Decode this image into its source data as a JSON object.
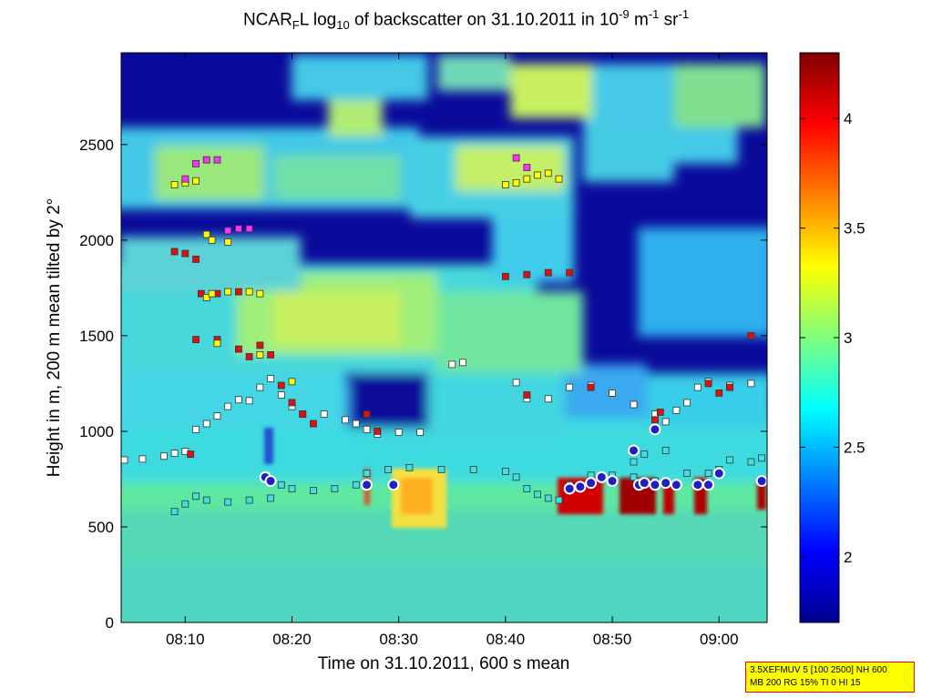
{
  "chart_data": {
    "type": "heatmap",
    "title_parts": {
      "a": "NCAR",
      "a_sub": "F",
      "b": "L log",
      "b_sub": "10",
      "c": " of backscatter on 31.10.2011 in 10",
      "c_sup": "-9",
      "d": " m",
      "d_sup": "-1",
      "e": " sr",
      "e_sup": "-1"
    },
    "xlabel": "Time on 31.10.2011, 600 s mean",
    "ylabel": "Height in m, 200 m mean tilted by 2°",
    "x_ticks": [
      "08:10",
      "08:20",
      "08:30",
      "08:40",
      "08:50",
      "09:00"
    ],
    "x_tick_minutes": [
      10,
      20,
      30,
      40,
      50,
      60
    ],
    "xlim_minutes_after_0800": [
      4,
      64.5
    ],
    "y_ticks": [
      "0",
      "500",
      "1000",
      "1500",
      "2000",
      "2500"
    ],
    "y_tick_values": [
      0,
      500,
      1000,
      1500,
      2000,
      2500
    ],
    "ylim": [
      0,
      2980
    ],
    "colorbar": {
      "ticks": [
        "2",
        "2.5",
        "3",
        "3.5",
        "4"
      ],
      "tick_values": [
        2,
        2.5,
        3,
        3.5,
        4
      ],
      "range": [
        1.7,
        4.3
      ],
      "colormap": "jet"
    },
    "grid": false,
    "markers": {
      "white_squares": [
        [
          4.3,
          850
        ],
        [
          6,
          855
        ],
        [
          8,
          870
        ],
        [
          9,
          885
        ],
        [
          10,
          895
        ],
        [
          11,
          1010
        ],
        [
          12,
          1040
        ],
        [
          13,
          1080
        ],
        [
          14,
          1130
        ],
        [
          15,
          1165
        ],
        [
          16,
          1160
        ],
        [
          17,
          1230
        ],
        [
          18,
          1275
        ],
        [
          19,
          1190
        ],
        [
          20,
          1130
        ],
        [
          21,
          1090
        ],
        [
          23,
          1090
        ],
        [
          25,
          1060
        ],
        [
          26,
          1040
        ],
        [
          27,
          1010
        ],
        [
          28,
          985
        ],
        [
          30,
          995
        ],
        [
          32,
          995
        ],
        [
          35,
          1350
        ],
        [
          36,
          1360
        ],
        [
          41,
          1255
        ],
        [
          42,
          1170
        ],
        [
          44,
          1170
        ],
        [
          46,
          1230
        ],
        [
          48,
          1240
        ],
        [
          50,
          1200
        ],
        [
          52,
          1140
        ],
        [
          54,
          1090
        ],
        [
          55,
          1050
        ],
        [
          56,
          1110
        ],
        [
          57,
          1150
        ],
        [
          58,
          1230
        ],
        [
          59,
          1260
        ],
        [
          61,
          1240
        ],
        [
          63,
          1250
        ]
      ],
      "cyan_squares": [
        [
          9,
          580
        ],
        [
          10,
          620
        ],
        [
          11,
          660
        ],
        [
          12,
          640
        ],
        [
          14,
          630
        ],
        [
          16,
          640
        ],
        [
          18,
          650
        ],
        [
          19,
          720
        ],
        [
          20,
          700
        ],
        [
          22,
          690
        ],
        [
          24,
          700
        ],
        [
          26,
          720
        ],
        [
          27,
          780
        ],
        [
          29,
          800
        ],
        [
          31,
          810
        ],
        [
          34,
          800
        ],
        [
          37,
          800
        ],
        [
          40,
          790
        ],
        [
          41,
          760
        ],
        [
          42,
          700
        ],
        [
          43,
          670
        ],
        [
          44,
          650
        ],
        [
          45,
          640
        ],
        [
          46,
          720
        ],
        [
          48,
          770
        ],
        [
          50,
          770
        ],
        [
          52,
          760
        ],
        [
          54,
          740
        ],
        [
          56,
          720
        ],
        [
          57,
          780
        ],
        [
          59,
          780
        ],
        [
          60,
          800
        ],
        [
          61,
          850
        ],
        [
          63,
          840
        ],
        [
          64,
          860
        ],
        [
          52,
          840
        ],
        [
          53,
          880
        ],
        [
          55,
          900
        ]
      ],
      "red_squares": [
        [
          9,
          1940
        ],
        [
          10,
          1930
        ],
        [
          11,
          1900
        ],
        [
          11.5,
          1720
        ],
        [
          13,
          1720
        ],
        [
          15,
          1730
        ],
        [
          11,
          1480
        ],
        [
          13,
          1480
        ],
        [
          15,
          1430
        ],
        [
          16,
          1390
        ],
        [
          17,
          1450
        ],
        [
          18,
          1400
        ],
        [
          19,
          1240
        ],
        [
          20,
          1150
        ],
        [
          21,
          1090
        ],
        [
          22,
          1040
        ],
        [
          10.5,
          880
        ],
        [
          40,
          1810
        ],
        [
          42,
          1820
        ],
        [
          44,
          1830
        ],
        [
          46,
          1830
        ],
        [
          54,
          1060
        ],
        [
          54.5,
          1100
        ],
        [
          63,
          1500
        ],
        [
          59,
          1250
        ],
        [
          60,
          1200
        ],
        [
          61,
          1230
        ],
        [
          27,
          1090
        ],
        [
          28,
          1000
        ],
        [
          42,
          1190
        ],
        [
          48,
          1230
        ]
      ],
      "yellow_squares": [
        [
          9,
          2290
        ],
        [
          10,
          2300
        ],
        [
          11,
          2310
        ],
        [
          12,
          1700
        ],
        [
          12.5,
          1720
        ],
        [
          14,
          1730
        ],
        [
          16,
          1730
        ],
        [
          17,
          1720
        ],
        [
          12,
          2030
        ],
        [
          12.5,
          2000
        ],
        [
          14,
          1990
        ],
        [
          40,
          2290
        ],
        [
          41,
          2300
        ],
        [
          42,
          2320
        ],
        [
          43,
          2340
        ],
        [
          44,
          2350
        ],
        [
          45,
          2320
        ],
        [
          13,
          1460
        ],
        [
          20,
          1260
        ],
        [
          17,
          1400
        ]
      ],
      "magenta_squares": [
        [
          10,
          2320
        ],
        [
          11,
          2400
        ],
        [
          12,
          2420
        ],
        [
          13,
          2420
        ],
        [
          14,
          2050
        ],
        [
          15,
          2060
        ],
        [
          16,
          2060
        ],
        [
          42,
          2380
        ],
        [
          41,
          2430
        ]
      ],
      "circles": [
        [
          17.5,
          760
        ],
        [
          18,
          740
        ],
        [
          27,
          720
        ],
        [
          29.5,
          720
        ],
        [
          46,
          700
        ],
        [
          47,
          710
        ],
        [
          48,
          730
        ],
        [
          49,
          760
        ],
        [
          50,
          740
        ],
        [
          52,
          900
        ],
        [
          52.5,
          720
        ],
        [
          53,
          730
        ],
        [
          54,
          720
        ],
        [
          54,
          1010
        ],
        [
          55,
          730
        ],
        [
          56,
          720
        ],
        [
          58,
          720
        ],
        [
          59,
          720
        ],
        [
          60,
          780
        ],
        [
          64,
          740
        ]
      ]
    }
  },
  "param_box": {
    "line1": "3.5XEFMUV 5 [100 2500] NH 600",
    "line2": "MB 200 RG 15% TI 0 HI 15"
  },
  "colors": {
    "marker_edge": "#333333",
    "box_bg": "#ffff00",
    "box_border": "#ff0000"
  }
}
